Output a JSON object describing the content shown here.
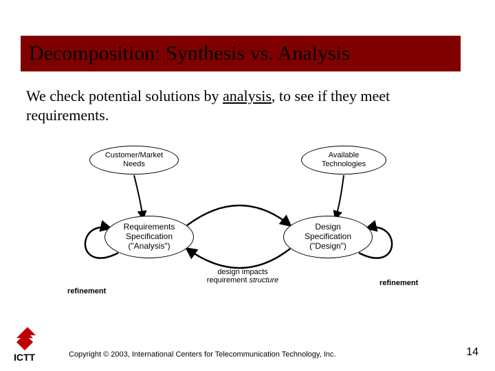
{
  "title": "Decomposition: Synthesis vs. Analysis",
  "title_bg": "#800000",
  "body_html": "We check potential solutions by <u>analysis</u>, to see if they meet requirements.",
  "diagram": {
    "nodes": {
      "customer": {
        "line1": "Customer/Market",
        "line2": "Needs"
      },
      "tech": {
        "line1": "Available",
        "line2": "Technologies"
      },
      "req": {
        "line1": "Requirements",
        "line2": "Specification",
        "line3": "(\"Analysis\")"
      },
      "design": {
        "line1": "Design",
        "line2": "Specification",
        "line3": "(\"Design\")"
      }
    },
    "mid_label": {
      "line1": "design impacts",
      "line2_pre": "requirement ",
      "line2_em": "structure"
    },
    "refine_left": "refinement",
    "refine_right": "refinement",
    "ellipse_fill": "#ffffff",
    "ellipse_stroke": "#000000",
    "arrow_stroke": "#000000",
    "arrow_width": 2
  },
  "copyright": "Copyright © 2003, International Centers for Telecommunication Technology, Inc.",
  "page_number": "14",
  "logo_red": "#c00000",
  "logo_text": "ICTT"
}
